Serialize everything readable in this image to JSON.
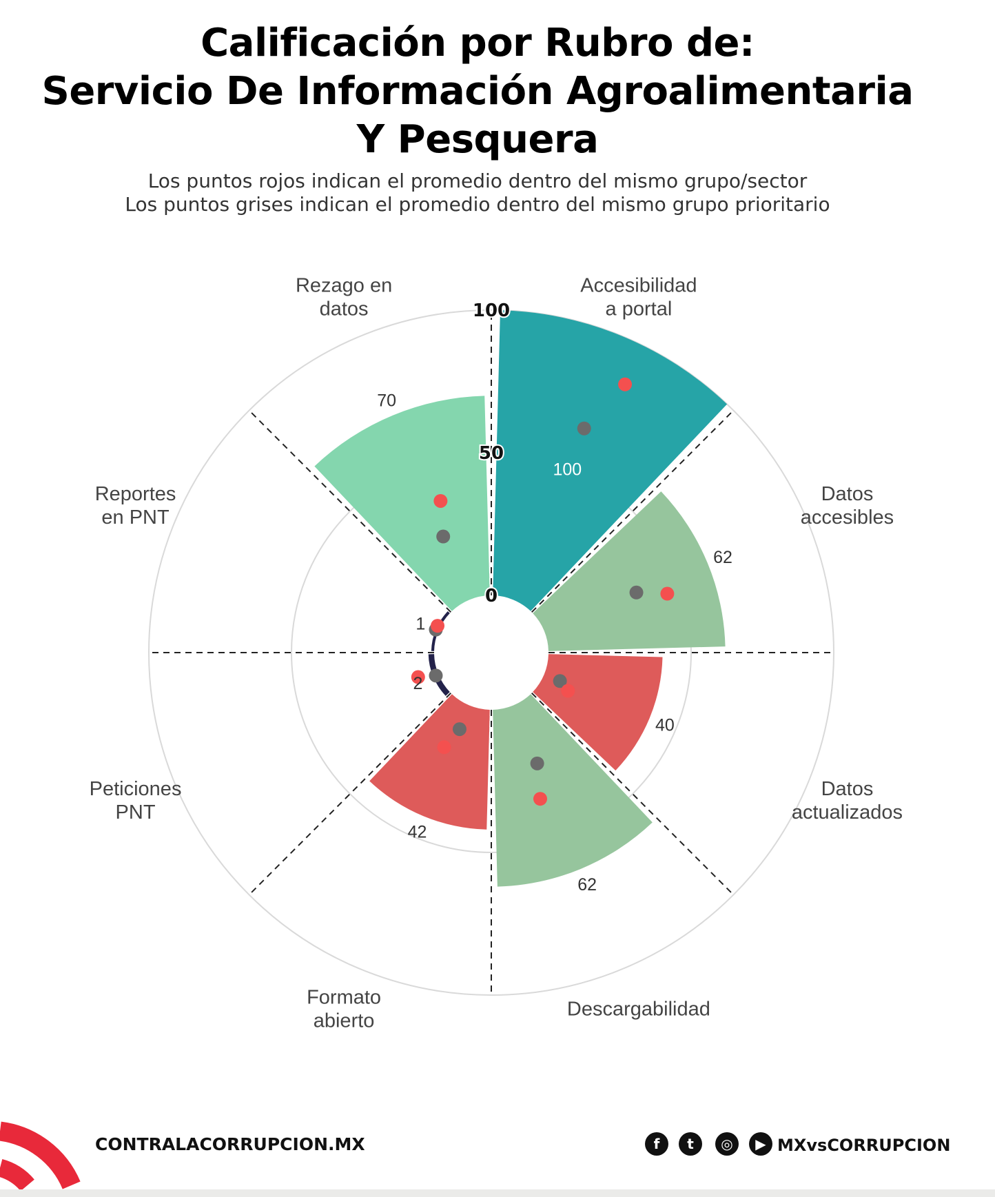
{
  "title_lines": [
    "Calificación por Rubro de:",
    "Servicio De Información Agroalimentaria",
    "Y Pesquera"
  ],
  "subtitle_lines": [
    "Los puntos rojos indican el promedio dentro del mismo grupo/sector",
    "Los puntos grises indican el promedio dentro del mismo grupo prioritario"
  ],
  "chart_data": {
    "type": "polar-bar",
    "title": "Calificación por Rubro de: Servicio De Información Agroalimentaria Y Pesquera",
    "radial_range": [
      0,
      100
    ],
    "radial_ticks": [
      "0",
      "50",
      "100"
    ],
    "grid": true,
    "categories": [
      "Accesibilidad a portal",
      "Datos accesibles",
      "Datos actualizados",
      "Descargabilidad",
      "Formato abierto",
      "Peticiones PNT",
      "Reportes en PNT",
      "Rezago en datos"
    ],
    "category_label_lines": [
      [
        "Accesibilidad",
        "a portal"
      ],
      [
        "Datos",
        "accesibles"
      ],
      [
        "Datos",
        "actualizados"
      ],
      [
        "Descargabilidad"
      ],
      [
        "Formato",
        "abierto"
      ],
      [
        "Peticiones",
        "PNT"
      ],
      [
        "Reportes",
        "en PNT"
      ],
      [
        "Rezago en",
        "datos"
      ]
    ],
    "values": [
      100,
      62,
      40,
      62,
      42,
      2,
      1,
      70
    ],
    "bar_colors": [
      "#26a4a7",
      "#96c59d",
      "#de5b5a",
      "#96c59d",
      "#de5b5a",
      "#23224a",
      "#23224a",
      "#84d6ae"
    ],
    "sector_avg_red": [
      85,
      45,
      10,
      34,
      17,
      7,
      1,
      36
    ],
    "priority_group_avg_grey": [
      65,
      35,
      6,
      22,
      9,
      1,
      1,
      24
    ],
    "red_color": "#f4504f",
    "grey_color": "#6b6b6b"
  },
  "footer": {
    "site": "CONTRALACORRUPCION.MX",
    "handle": "MXvsCORRUPCION",
    "icons": [
      "facebook-icon",
      "twitter-icon",
      "instagram-icon",
      "youtube-icon"
    ],
    "logo_color": "#e8293a"
  }
}
